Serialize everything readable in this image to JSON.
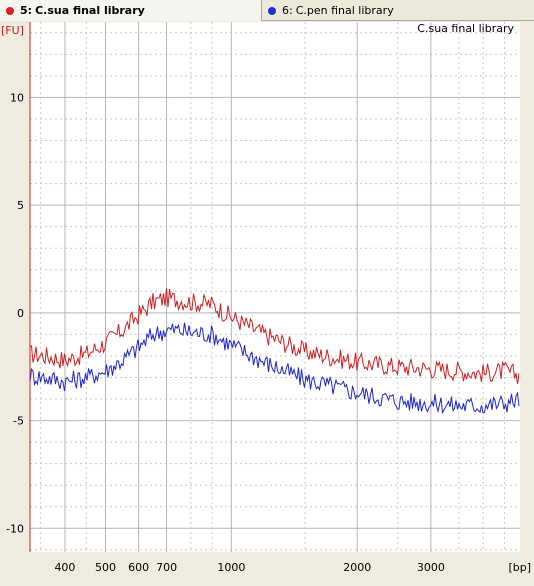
{
  "tabs": [
    {
      "number": "5:",
      "label": "C.sua final library",
      "color": "#d81f1f",
      "active": true
    },
    {
      "number": "6:",
      "label": "C.pen final library",
      "color": "#1d2fd0",
      "active": false
    }
  ],
  "chart_data": {
    "type": "line",
    "title": "C.sua final library",
    "ylabel": "[FU]",
    "xlabel": "[bp]",
    "x_scale": "log",
    "xlim": [
      330,
      4900
    ],
    "ylim": [
      -11.1,
      13.5
    ],
    "grid": true,
    "x_ticks": [
      400,
      500,
      600,
      700,
      1000,
      2000,
      3000
    ],
    "x_tick_labels": [
      "400",
      "500",
      "600",
      "700",
      "1000",
      "2000",
      "3000"
    ],
    "x_minor_grid": [
      350,
      450,
      800,
      900,
      1500,
      2500,
      3500,
      4000,
      4500
    ],
    "y_ticks": [
      10,
      5,
      0,
      -5,
      -10
    ],
    "y_tick_labels": [
      "10",
      "5",
      "0",
      "-5",
      "-10"
    ],
    "series": [
      {
        "name": "C.sua final library",
        "color": "#cc2020",
        "x": [
          330,
          360,
          400,
          450,
          500,
          550,
          600,
          650,
          700,
          750,
          800,
          900,
          1000,
          1200,
          1500,
          2000,
          2500,
          3000,
          3500,
          4000,
          4500,
          4900
        ],
        "values": [
          -1.9,
          -2.0,
          -2.2,
          -1.9,
          -1.4,
          -0.8,
          -0.1,
          0.5,
          0.7,
          0.6,
          0.5,
          0.4,
          -0.2,
          -1.0,
          -1.8,
          -2.3,
          -2.5,
          -2.6,
          -2.7,
          -2.8,
          -2.7,
          -2.9
        ]
      },
      {
        "name": "C.pen final library",
        "color": "#1e26c8",
        "x": [
          330,
          360,
          400,
          450,
          500,
          550,
          600,
          650,
          700,
          750,
          800,
          900,
          1000,
          1200,
          1500,
          2000,
          2500,
          3000,
          3500,
          4000,
          4500,
          4900
        ],
        "values": [
          -2.9,
          -3.0,
          -3.2,
          -3.0,
          -2.7,
          -2.2,
          -1.6,
          -1.0,
          -0.8,
          -0.8,
          -0.9,
          -1.0,
          -1.5,
          -2.3,
          -3.1,
          -3.7,
          -4.1,
          -4.2,
          -4.3,
          -4.3,
          -4.2,
          -4.0
        ]
      }
    ]
  }
}
